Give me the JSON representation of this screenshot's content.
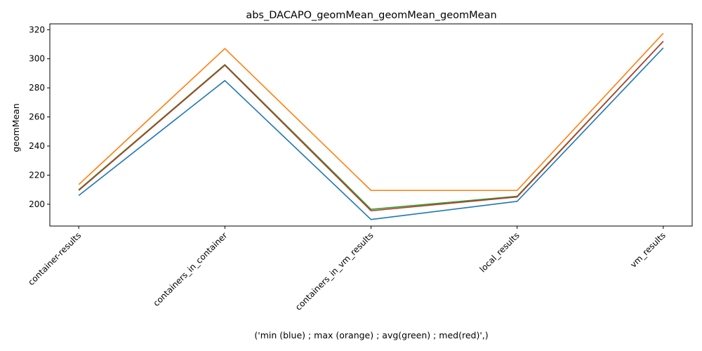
{
  "chart_data": {
    "type": "line",
    "title": "abs_DACAPO_geomMean_geomMean_geomMean",
    "xlabel": "('min (blue) ; max (orange) ; avg(green) ; med(red)',)",
    "ylabel": "geomMean",
    "categories": [
      "container-results",
      "containers_in_container",
      "containers_in_vm_results",
      "local_results",
      "vm_results"
    ],
    "ylim": [
      185,
      324
    ],
    "yticks": [
      200,
      220,
      240,
      260,
      280,
      300,
      320
    ],
    "grid": false,
    "legend": "none",
    "series": [
      {
        "color": "#1f77b4",
        "values": [
          206,
          285,
          189.5,
          202,
          307.5
        ]
      },
      {
        "color": "#ff7f0e",
        "values": [
          213.5,
          307,
          209.5,
          209.5,
          317.5
        ]
      },
      {
        "color": "#2ca02c",
        "values": [
          210,
          296,
          196.5,
          205.5,
          312
        ]
      },
      {
        "color": "#b5392c",
        "values": [
          209.5,
          295.5,
          195.5,
          205,
          312
        ]
      }
    ]
  }
}
